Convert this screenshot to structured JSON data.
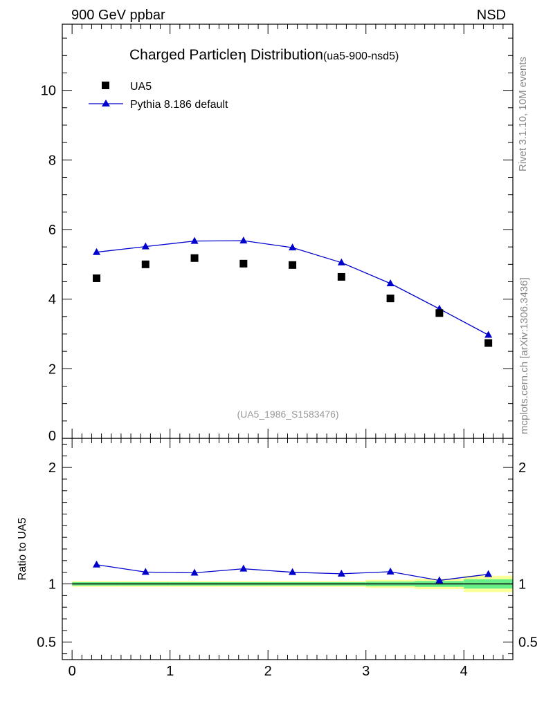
{
  "header": {
    "left": "900 GeV ppbar",
    "right": "NSD"
  },
  "side_labels": {
    "rivet": "Rivet 3.1.10,  10M events",
    "mcplots": "mcplots.cern.ch [arXiv:1306.3436]"
  },
  "chart_data": {
    "type": "scatter",
    "title": "Charged Particle",
    "title_eta": "η",
    "title_rest": " Distribution",
    "title_tag": "(ua5-900-nsd5)",
    "analysis_label": "(UA5_1986_S1583476)",
    "xlim": [
      -0.1,
      4.5
    ],
    "x_ticks": [
      0,
      1,
      2,
      3,
      4
    ],
    "x_tick_labels": [
      "0",
      "1",
      "2",
      "3",
      "4"
    ],
    "main_panel": {
      "ylim": [
        0,
        11.9
      ],
      "y_ticks": [
        0,
        2,
        4,
        6,
        8,
        10
      ],
      "y_tick_labels": [
        "0",
        "2",
        "4",
        "6",
        "8",
        "10"
      ]
    },
    "ratio_panel": {
      "ylabel": "Ratio to UA5",
      "ylim": [
        0.35,
        2.25
      ],
      "y_ticks": [
        0.5,
        1,
        2
      ],
      "y_tick_labels": [
        "0.5",
        "1",
        "2"
      ]
    },
    "x": [
      0.25,
      0.75,
      1.25,
      1.75,
      2.25,
      2.75,
      3.25,
      3.75,
      4.25
    ],
    "bin_edges": [
      0,
      0.5,
      1,
      1.5,
      2,
      2.5,
      3,
      3.5,
      4,
      4.5
    ],
    "series": [
      {
        "name": "UA5",
        "marker": "square",
        "color": "#000000",
        "values": [
          4.6,
          5.0,
          5.18,
          5.02,
          4.98,
          4.64,
          4.02,
          3.6,
          2.74
        ]
      },
      {
        "name": "Pythia 8.186 default",
        "marker": "triangle",
        "color": "#0000cc",
        "values": [
          5.35,
          5.51,
          5.67,
          5.68,
          5.48,
          5.05,
          4.45,
          3.72,
          2.97
        ]
      }
    ],
    "ratio": [
      1.165,
      1.102,
      1.095,
      1.13,
      1.1,
      1.087,
      1.105,
      1.03,
      1.083
    ],
    "uncertainty_bands": {
      "stat_color": "#66ee88",
      "total_color": "#ffff99",
      "stat": [
        0.015,
        0.015,
        0.015,
        0.015,
        0.015,
        0.015,
        0.02,
        0.025,
        0.04
      ],
      "total": [
        0.025,
        0.025,
        0.025,
        0.025,
        0.025,
        0.025,
        0.035,
        0.045,
        0.07
      ]
    }
  }
}
